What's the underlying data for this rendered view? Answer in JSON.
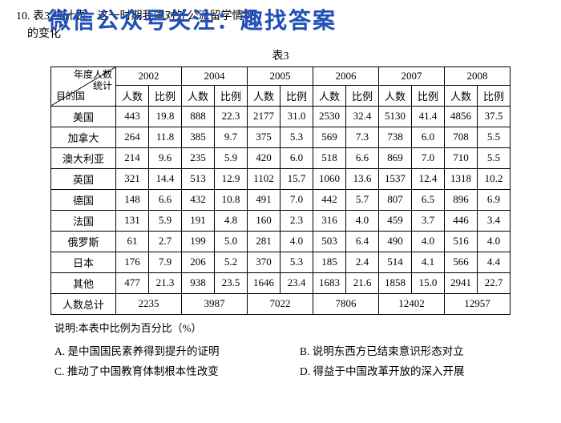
{
  "question": {
    "number": "10.",
    "text_line1": "表3                                                       统计表。这一时期我国对外公派留学情况",
    "text_line2": "的变化"
  },
  "overlay": {
    "text": "微信公众号关注：趣找答案",
    "color": "#2050b8",
    "fontsize": 28
  },
  "caption": "表3",
  "diag": {
    "top": "年度人数\n统计",
    "bottom": "目的国"
  },
  "years": [
    "2002",
    "2004",
    "2005",
    "2006",
    "2007",
    "2008"
  ],
  "subheads": {
    "count": "人数",
    "ratio": "比例"
  },
  "countries": [
    "美国",
    "加拿大",
    "澳大利亚",
    "英国",
    "德国",
    "法国",
    "俄罗斯",
    "日本",
    "其他"
  ],
  "rows": [
    {
      "c": "美国",
      "d": [
        [
          "443",
          "19.8"
        ],
        [
          "888",
          "22.3"
        ],
        [
          "2177",
          "31.0"
        ],
        [
          "2530",
          "32.4"
        ],
        [
          "5130",
          "41.4"
        ],
        [
          "4856",
          "37.5"
        ]
      ]
    },
    {
      "c": "加拿大",
      "d": [
        [
          "264",
          "11.8"
        ],
        [
          "385",
          "9.7"
        ],
        [
          "375",
          "5.3"
        ],
        [
          "569",
          "7.3"
        ],
        [
          "738",
          "6.0"
        ],
        [
          "708",
          "5.5"
        ]
      ]
    },
    {
      "c": "澳大利亚",
      "d": [
        [
          "214",
          "9.6"
        ],
        [
          "235",
          "5.9"
        ],
        [
          "420",
          "6.0"
        ],
        [
          "518",
          "6.6"
        ],
        [
          "869",
          "7.0"
        ],
        [
          "710",
          "5.5"
        ]
      ]
    },
    {
      "c": "英国",
      "d": [
        [
          "321",
          "14.4"
        ],
        [
          "513",
          "12.9"
        ],
        [
          "1102",
          "15.7"
        ],
        [
          "1060",
          "13.6"
        ],
        [
          "1537",
          "12.4"
        ],
        [
          "1318",
          "10.2"
        ]
      ]
    },
    {
      "c": "德国",
      "d": [
        [
          "148",
          "6.6"
        ],
        [
          "432",
          "10.8"
        ],
        [
          "491",
          "7.0"
        ],
        [
          "442",
          "5.7"
        ],
        [
          "807",
          "6.5"
        ],
        [
          "896",
          "6.9"
        ]
      ]
    },
    {
      "c": "法国",
      "d": [
        [
          "131",
          "5.9"
        ],
        [
          "191",
          "4.8"
        ],
        [
          "160",
          "2.3"
        ],
        [
          "316",
          "4.0"
        ],
        [
          "459",
          "3.7"
        ],
        [
          "446",
          "3.4"
        ]
      ]
    },
    {
      "c": "俄罗斯",
      "d": [
        [
          "61",
          "2.7"
        ],
        [
          "199",
          "5.0"
        ],
        [
          "281",
          "4.0"
        ],
        [
          "503",
          "6.4"
        ],
        [
          "490",
          "4.0"
        ],
        [
          "516",
          "4.0"
        ]
      ]
    },
    {
      "c": "日本",
      "d": [
        [
          "176",
          "7.9"
        ],
        [
          "206",
          "5.2"
        ],
        [
          "370",
          "5.3"
        ],
        [
          "185",
          "2.4"
        ],
        [
          "514",
          "4.1"
        ],
        [
          "566",
          "4.4"
        ]
      ]
    },
    {
      "c": "其他",
      "d": [
        [
          "477",
          "21.3"
        ],
        [
          "938",
          "23.5"
        ],
        [
          "1646",
          "23.4"
        ],
        [
          "1683",
          "21.6"
        ],
        [
          "1858",
          "15.0"
        ],
        [
          "2941",
          "22.7"
        ]
      ]
    }
  ],
  "total": {
    "label": "人数总计",
    "values": [
      "2235",
      "3987",
      "7022",
      "7806",
      "12402",
      "12957"
    ]
  },
  "note": "说明:本表中比例为百分比（%）",
  "options": {
    "A": "A. 是中国国民素养得到提升的证明",
    "B": "B. 说明东西方已结束意识形态对立",
    "C": "C. 推动了中国教育体制根本性改变",
    "D": "D. 得益于中国改革开放的深入开展"
  },
  "style": {
    "body_fontsize": 14,
    "table_fontsize": 13,
    "border_color": "#000000",
    "background": "#ffffff"
  }
}
